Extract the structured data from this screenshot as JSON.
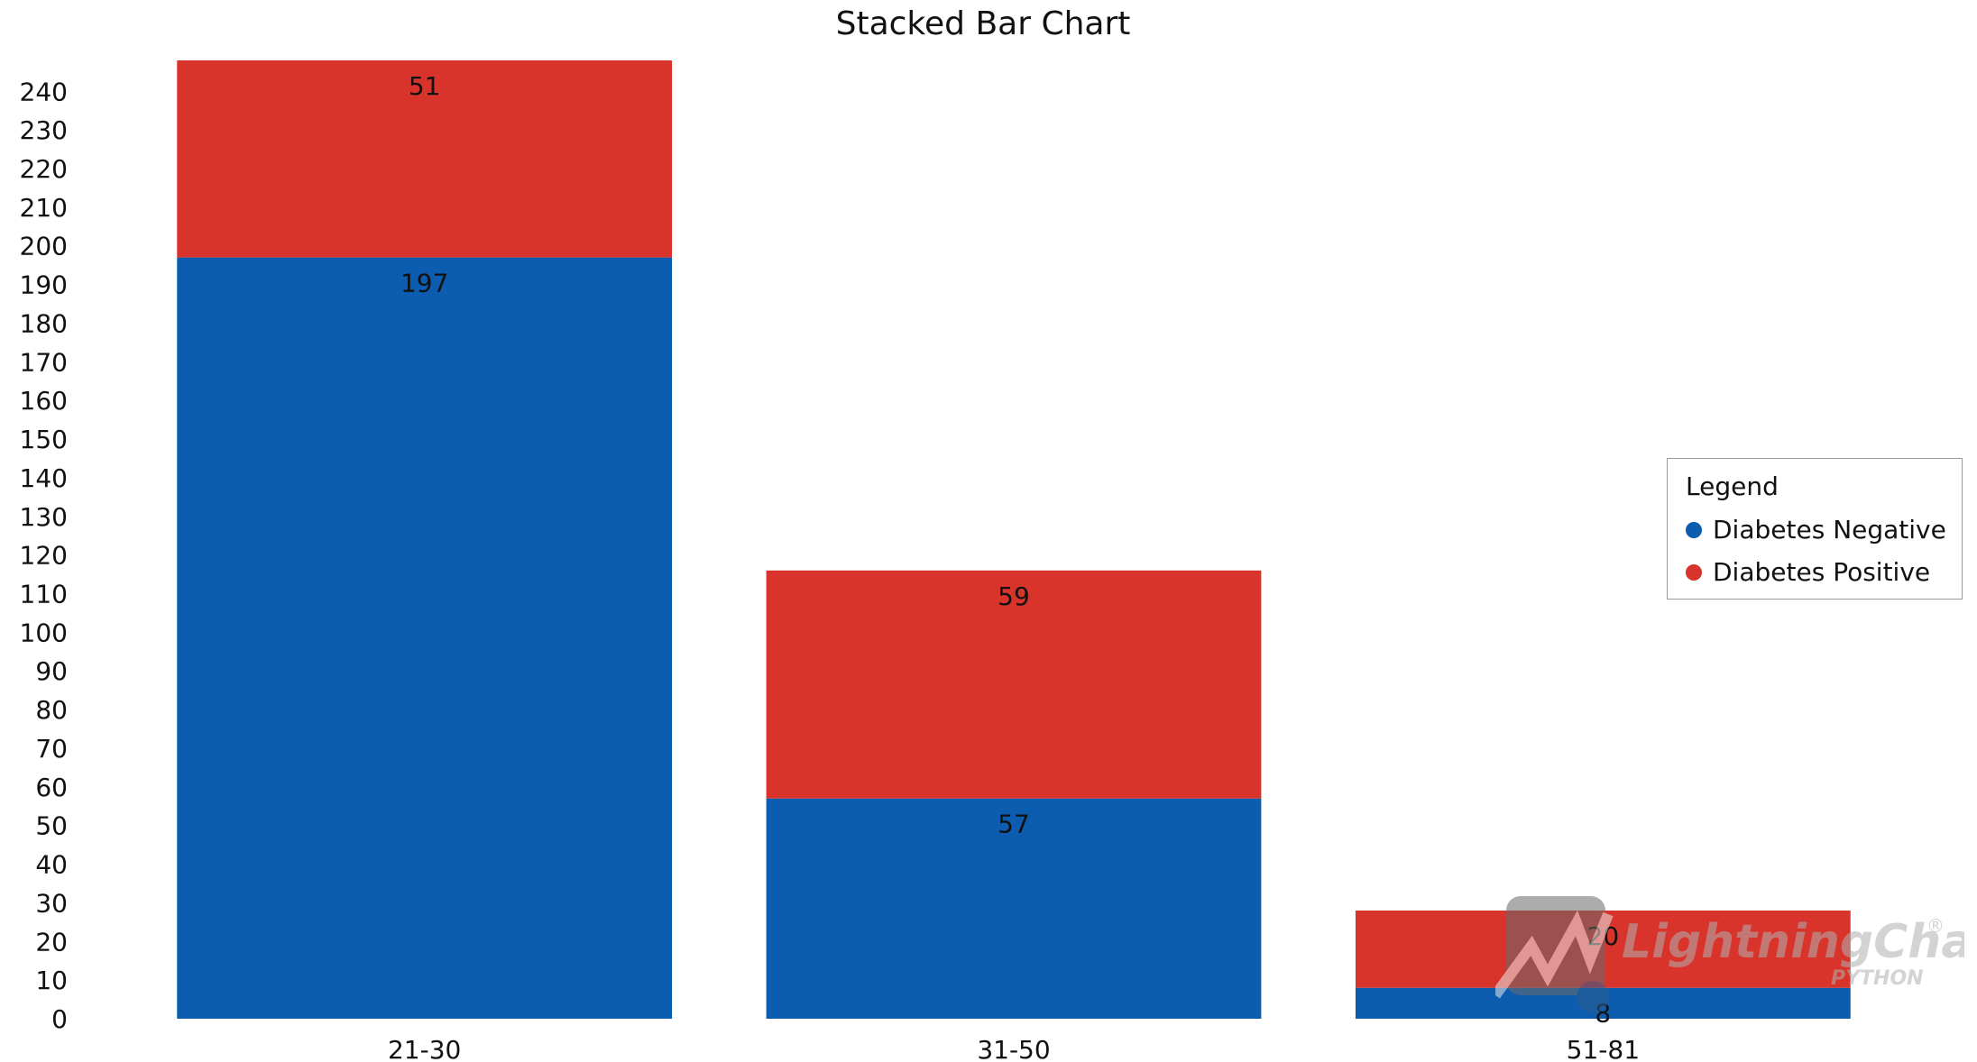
{
  "chart_data": {
    "type": "bar",
    "stacked": true,
    "title": "Stacked Bar Chart",
    "xlabel": "",
    "ylabel": "",
    "categories": [
      "21-30",
      "31-50",
      "51-81"
    ],
    "series": [
      {
        "name": "Diabetes Negative",
        "color": "#0c5cb0",
        "values": [
          197,
          57,
          8
        ]
      },
      {
        "name": "Diabetes Positive",
        "color": "#d9342b",
        "values": [
          51,
          59,
          20
        ]
      }
    ],
    "ylim": [
      0,
      248
    ],
    "yticks": [
      0,
      10,
      20,
      30,
      40,
      50,
      60,
      70,
      80,
      90,
      100,
      110,
      120,
      130,
      140,
      150,
      160,
      170,
      180,
      190,
      200,
      210,
      220,
      230,
      240
    ],
    "grid": false,
    "legend": {
      "title": "Legend",
      "placement": "right"
    }
  },
  "watermark": {
    "text": "LightningChart",
    "subtext": "PYTHON",
    "mark": "®"
  }
}
